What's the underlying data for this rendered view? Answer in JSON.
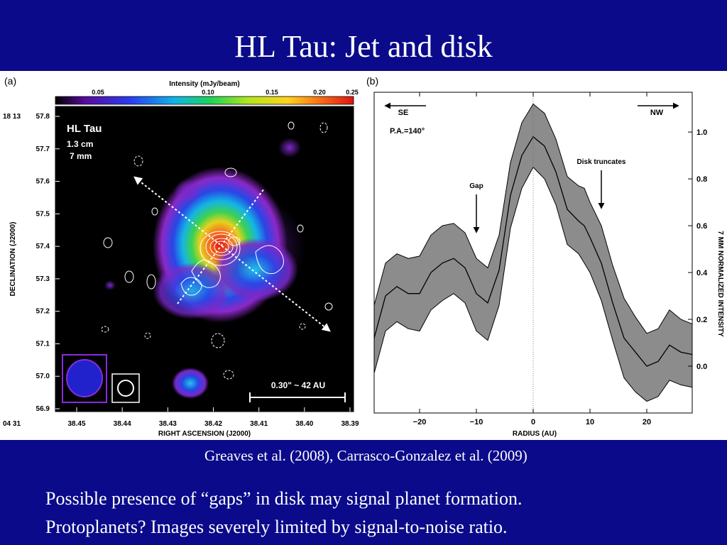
{
  "slide": {
    "title": "HL Tau: Jet and disk",
    "citation": "Greaves et al. (2008), Carrasco-Gonzalez et al. (2009)",
    "body_lines": [
      "Possible presence of “gaps” in disk may signal planet formation.",
      "Protoplanets? Images severely limited by signal-to-noise ratio."
    ]
  },
  "panel_a": {
    "label": "(a)",
    "colorbar": {
      "title": "Intensity (mJy/beam)",
      "ticks": [
        "0.05",
        "0.10",
        "0.15",
        "0.20",
        "0.25"
      ]
    },
    "source_name": "HL Tau",
    "bands": [
      "1.3 cm",
      "7 mm"
    ],
    "scale_bar": "0.30\" ~ 42 AU",
    "ylabel": "DECLINATION (J2000)",
    "xlabel": "RIGHT ASCENSION (J2000)",
    "dec_prefix": "18  13",
    "dec_ticks": [
      "57.8",
      "57.7",
      "57.6",
      "57.5",
      "57.4",
      "57.3",
      "57.2",
      "57.1",
      "57.0",
      "56.9"
    ],
    "ra_prefix": "04  31",
    "ra_ticks": [
      "38.45",
      "38.44",
      "38.43",
      "38.42",
      "38.41",
      "38.40",
      "38.39"
    ]
  },
  "chart_data": {
    "type": "area",
    "panel_label": "(b)",
    "xlabel": "RADIUS (AU)",
    "ylabel": "7 MM NORMALIZED INTENSITY",
    "xlim": [
      -28,
      28
    ],
    "ylim": [
      -0.2,
      1.17
    ],
    "x_ticks": [
      -20,
      -10,
      0,
      10,
      20
    ],
    "y_ticks": [
      0.0,
      0.2,
      0.4,
      0.6,
      0.8,
      1.0
    ],
    "x_tick_labels": [
      "−20",
      "−10",
      "0",
      "10",
      "20"
    ],
    "y_tick_labels": [
      "0.0",
      "0.2",
      "0.4",
      "0.6",
      "0.8",
      "1.0"
    ],
    "pa_label": "P.A.=140°",
    "direction_left": "SE",
    "direction_right": "NW",
    "annotations": [
      {
        "text": "Gap",
        "x": -10
      },
      {
        "text": "Disk truncates",
        "x": 12
      }
    ],
    "series": [
      {
        "x": [
          -28,
          -26,
          -24,
          -22,
          -20,
          -18,
          -16,
          -14,
          -12,
          -10,
          -8,
          -6,
          -4,
          -2,
          0,
          2,
          4,
          6,
          8,
          9,
          10,
          12,
          14,
          16,
          18,
          20,
          22,
          24,
          26,
          28
        ],
        "values": [
          0.12,
          0.3,
          0.34,
          0.31,
          0.31,
          0.4,
          0.44,
          0.46,
          0.42,
          0.31,
          0.27,
          0.41,
          0.73,
          0.9,
          0.98,
          0.94,
          0.83,
          0.67,
          0.62,
          0.6,
          0.55,
          0.44,
          0.27,
          0.12,
          0.06,
          0.0,
          0.02,
          0.09,
          0.06,
          0.05
        ],
        "upper": [
          0.26,
          0.44,
          0.48,
          0.46,
          0.47,
          0.56,
          0.6,
          0.61,
          0.57,
          0.46,
          0.42,
          0.56,
          0.87,
          1.04,
          1.12,
          1.08,
          0.97,
          0.81,
          0.77,
          0.76,
          0.7,
          0.6,
          0.43,
          0.29,
          0.21,
          0.14,
          0.16,
          0.24,
          0.2,
          0.18
        ],
        "lower": [
          -0.03,
          0.15,
          0.19,
          0.16,
          0.15,
          0.24,
          0.28,
          0.31,
          0.27,
          0.15,
          0.11,
          0.26,
          0.59,
          0.76,
          0.85,
          0.8,
          0.69,
          0.52,
          0.48,
          0.44,
          0.4,
          0.28,
          0.11,
          -0.05,
          -0.11,
          -0.15,
          -0.13,
          -0.06,
          -0.08,
          -0.09
        ]
      }
    ]
  }
}
